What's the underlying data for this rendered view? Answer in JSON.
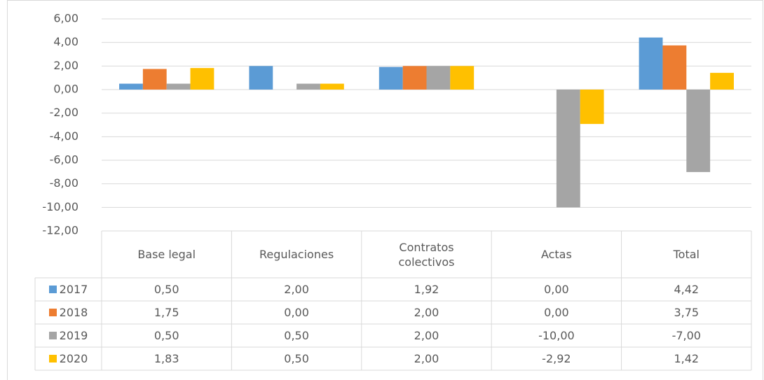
{
  "chart_data": {
    "type": "bar",
    "categories": [
      "Base legal",
      "Regulaciones",
      "Contratos colectivos",
      "Actas",
      "Total"
    ],
    "series": [
      {
        "name": "2017",
        "color": "#5b9bd5",
        "values": [
          0.5,
          2.0,
          1.92,
          0.0,
          4.42
        ],
        "value_labels": [
          "0,50",
          "2,00",
          "1,92",
          "0,00",
          "4,42"
        ]
      },
      {
        "name": "2018",
        "color": "#ed7d31",
        "values": [
          1.75,
          0.0,
          2.0,
          0.0,
          3.75
        ],
        "value_labels": [
          "1,75",
          "0,00",
          "2,00",
          "0,00",
          "3,75"
        ]
      },
      {
        "name": "2019",
        "color": "#a5a5a5",
        "values": [
          0.5,
          0.5,
          2.0,
          -10.0,
          -7.0
        ],
        "value_labels": [
          "0,50",
          "0,50",
          "2,00",
          "-10,00",
          "-7,00"
        ]
      },
      {
        "name": "2020",
        "color": "#ffc000",
        "values": [
          1.83,
          0.5,
          2.0,
          -2.92,
          1.42
        ],
        "value_labels": [
          "1,83",
          "0,50",
          "2,00",
          "-2,92",
          "1,42"
        ]
      }
    ],
    "ylim": [
      -12,
      6
    ],
    "yticks": [
      {
        "value": -12,
        "label": "-12,00"
      },
      {
        "value": -10,
        "label": "-10,00"
      },
      {
        "value": -8,
        "label": "-8,00"
      },
      {
        "value": -6,
        "label": "-6,00"
      },
      {
        "value": -4,
        "label": "-4,00"
      },
      {
        "value": -2,
        "label": "-2,00"
      },
      {
        "value": 0,
        "label": "0,00"
      },
      {
        "value": 2,
        "label": "2,00"
      },
      {
        "value": 4,
        "label": "4,00"
      },
      {
        "value": 6,
        "label": "6,00"
      }
    ],
    "grid": true
  }
}
